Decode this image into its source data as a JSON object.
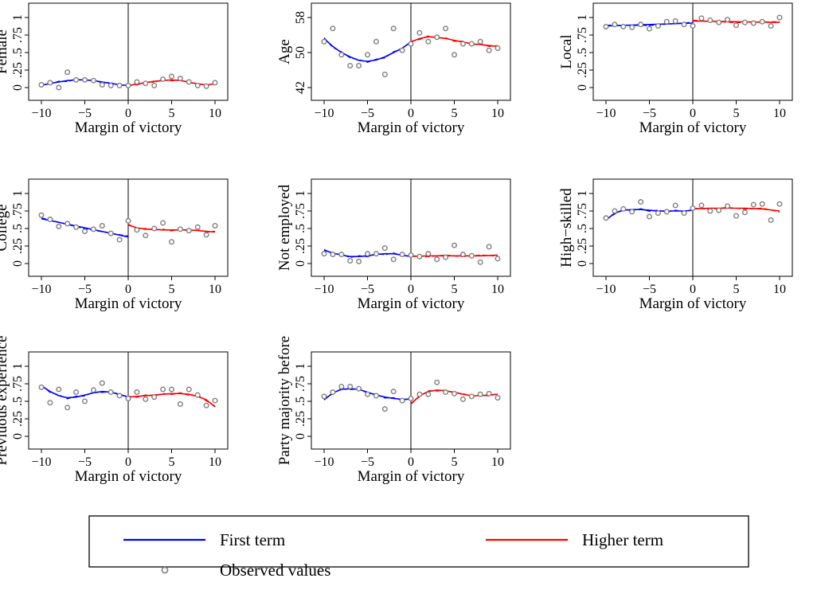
{
  "colors": {
    "first_term": "#0000ff",
    "higher_term": "#ff0000",
    "observed": "#808080",
    "axis": "#000000"
  },
  "legend": {
    "first_term": "First term",
    "higher_term": "Higher term",
    "observed": "Observed values"
  },
  "chart_data": [
    {
      "type": "scatter",
      "ylabel": "Female",
      "xlabel": "Margin of victory",
      "xlim": [
        -10,
        10
      ],
      "ylim": [
        0,
        1
      ],
      "xticks": [
        "−10",
        "−5",
        "0",
        "5",
        "10"
      ],
      "yticks": [
        "0",
        ".25",
        ".5",
        ".75",
        "1"
      ],
      "observed": {
        "x": [
          -10,
          -9,
          -8,
          -7,
          -6,
          -5,
          -4,
          -3,
          -2,
          -1,
          0,
          1,
          2,
          3,
          4,
          5,
          6,
          7,
          8,
          9,
          10
        ],
        "y": [
          0.04,
          0.07,
          0.0,
          0.22,
          0.11,
          0.11,
          0.1,
          0.04,
          0.03,
          0.03,
          0.03,
          0.08,
          0.06,
          0.03,
          0.12,
          0.16,
          0.13,
          0.08,
          0.03,
          0.02,
          0.07
        ]
      },
      "series": [
        {
          "name": "First term",
          "x": [
            -10,
            -9,
            -8,
            -7,
            -6,
            -5,
            -4,
            -3,
            -2,
            -1,
            0
          ],
          "y": [
            0.03,
            0.06,
            0.08,
            0.1,
            0.11,
            0.11,
            0.1,
            0.08,
            0.06,
            0.04,
            0.03
          ]
        },
        {
          "name": "Higher term",
          "x": [
            0,
            1,
            2,
            3,
            4,
            5,
            6,
            7,
            8,
            9,
            10
          ],
          "y": [
            0.03,
            0.05,
            0.07,
            0.09,
            0.1,
            0.11,
            0.1,
            0.08,
            0.05,
            0.04,
            0.05
          ]
        }
      ]
    },
    {
      "type": "scatter",
      "ylabel": "Age",
      "xlabel": "Margin of victory",
      "xlim": [
        -10,
        10
      ],
      "ylim": [
        40,
        62
      ],
      "xticks": [
        "−10",
        "−5",
        "0",
        "5",
        "10"
      ],
      "yticks": [
        "42",
        "50",
        "58"
      ],
      "observed": {
        "x": [
          -10,
          -9,
          -8,
          -7,
          -6,
          -5,
          -4,
          -3,
          -2,
          -1,
          0,
          1,
          2,
          3,
          4,
          5,
          6,
          7,
          8,
          9,
          10
        ],
        "y": [
          52.5,
          55.5,
          49.5,
          47,
          47,
          49.5,
          52.5,
          45,
          55.5,
          50.5,
          52,
          54.5,
          52.5,
          53.5,
          55.5,
          49.5,
          52,
          52,
          52.5,
          50.5,
          51
        ]
      },
      "series": [
        {
          "name": "First term",
          "x": [
            -10,
            -9,
            -8,
            -7,
            -6,
            -5,
            -4,
            -3,
            -2,
            -1,
            0
          ],
          "y": [
            53.2,
            51.4,
            50,
            49,
            48.2,
            48,
            48.3,
            49,
            50,
            51,
            52.4
          ]
        },
        {
          "name": "Higher term",
          "x": [
            0,
            1,
            2,
            3,
            4,
            5,
            6,
            7,
            8,
            9,
            10
          ],
          "y": [
            52.4,
            53.2,
            53.6,
            53.5,
            53.2,
            52.8,
            52.4,
            52,
            51.8,
            51.6,
            51.4
          ]
        }
      ]
    },
    {
      "type": "scatter",
      "ylabel": "Local",
      "xlabel": "Margin of victory",
      "xlim": [
        -10,
        10
      ],
      "ylim": [
        0,
        1
      ],
      "xticks": [
        "−10",
        "−5",
        "0",
        "5",
        "10"
      ],
      "yticks": [
        "0",
        ".25",
        ".5",
        ".75",
        "1"
      ],
      "observed": {
        "x": [
          -10,
          -9,
          -8,
          -7,
          -6,
          -5,
          -4,
          -3,
          -2,
          -1,
          0,
          1,
          2,
          3,
          4,
          5,
          6,
          7,
          8,
          9,
          10
        ],
        "y": [
          0.87,
          0.9,
          0.87,
          0.86,
          0.9,
          0.84,
          0.88,
          0.94,
          0.95,
          0.9,
          0.88,
          0.99,
          0.96,
          0.93,
          0.97,
          0.89,
          0.93,
          0.92,
          0.94,
          0.88,
          1.0
        ]
      },
      "series": [
        {
          "name": "First term",
          "x": [
            -10,
            -5,
            0
          ],
          "y": [
            0.88,
            0.9,
            0.92
          ]
        },
        {
          "name": "Higher term",
          "x": [
            0,
            5,
            10
          ],
          "y": [
            0.95,
            0.94,
            0.93
          ]
        }
      ]
    },
    {
      "type": "scatter",
      "ylabel": "College",
      "xlabel": "Margin of victory",
      "xlim": [
        -10,
        10
      ],
      "ylim": [
        0,
        1
      ],
      "xticks": [
        "−10",
        "−5",
        "0",
        "5",
        "10"
      ],
      "yticks": [
        "0",
        ".25",
        ".5",
        ".75",
        "1"
      ],
      "observed": {
        "x": [
          -10,
          -9,
          -8,
          -7,
          -6,
          -5,
          -4,
          -3,
          -2,
          -1,
          0,
          1,
          2,
          3,
          4,
          5,
          6,
          7,
          8,
          9,
          10
        ],
        "y": [
          0.69,
          0.63,
          0.53,
          0.57,
          0.52,
          0.46,
          0.49,
          0.54,
          0.43,
          0.34,
          0.61,
          0.48,
          0.4,
          0.5,
          0.58,
          0.31,
          0.49,
          0.47,
          0.52,
          0.41,
          0.54
        ]
      },
      "series": [
        {
          "name": "First term",
          "x": [
            -10,
            -5,
            0
          ],
          "y": [
            0.64,
            0.51,
            0.38
          ]
        },
        {
          "name": "Higher term",
          "x": [
            0,
            1,
            2,
            3,
            4,
            5,
            6,
            7,
            8,
            9,
            10
          ],
          "y": [
            0.55,
            0.51,
            0.49,
            0.49,
            0.48,
            0.48,
            0.48,
            0.48,
            0.47,
            0.46,
            0.45
          ]
        }
      ]
    },
    {
      "type": "scatter",
      "ylabel": "Not employed",
      "xlabel": "Margin of victory",
      "xlim": [
        -10,
        10
      ],
      "ylim": [
        0,
        1
      ],
      "xticks": [
        "−10",
        "−5",
        "0",
        "5",
        "10"
      ],
      "yticks": [
        "0",
        ".25",
        ".5",
        ".75",
        "1"
      ],
      "observed": {
        "x": [
          -10,
          -9,
          -8,
          -7,
          -6,
          -5,
          -4,
          -3,
          -2,
          -1,
          0,
          1,
          2,
          3,
          4,
          5,
          6,
          7,
          8,
          9,
          10
        ],
        "y": [
          0.14,
          0.13,
          0.13,
          0.04,
          0.03,
          0.14,
          0.14,
          0.22,
          0.06,
          0.13,
          0.12,
          0.1,
          0.14,
          0.06,
          0.09,
          0.26,
          0.13,
          0.11,
          0.02,
          0.24,
          0.07
        ]
      },
      "series": [
        {
          "name": "First term",
          "x": [
            -10,
            -9,
            -8,
            -7,
            -6,
            -5,
            -4,
            -3,
            -2,
            -1,
            0
          ],
          "y": [
            0.19,
            0.15,
            0.12,
            0.1,
            0.1,
            0.11,
            0.13,
            0.14,
            0.14,
            0.12,
            0.1
          ]
        },
        {
          "name": "Higher term",
          "x": [
            0,
            2,
            4,
            6,
            8,
            10
          ],
          "y": [
            0.1,
            0.11,
            0.11,
            0.11,
            0.11,
            0.12
          ]
        }
      ]
    },
    {
      "type": "scatter",
      "ylabel": "High−skilled",
      "xlabel": "Margin of victory",
      "xlim": [
        -10,
        10
      ],
      "ylim": [
        0,
        1
      ],
      "xticks": [
        "−10",
        "−5",
        "0",
        "5",
        "10"
      ],
      "yticks": [
        "0",
        ".25",
        ".5",
        ".75",
        "1"
      ],
      "observed": {
        "x": [
          -10,
          -9,
          -8,
          -7,
          -6,
          -5,
          -4,
          -3,
          -2,
          -1,
          0,
          1,
          2,
          3,
          4,
          5,
          6,
          7,
          8,
          9,
          10
        ],
        "y": [
          0.65,
          0.75,
          0.78,
          0.74,
          0.88,
          0.67,
          0.72,
          0.74,
          0.83,
          0.72,
          0.79,
          0.83,
          0.75,
          0.76,
          0.82,
          0.68,
          0.73,
          0.84,
          0.85,
          0.62,
          0.85
        ]
      },
      "series": [
        {
          "name": "First term",
          "x": [
            -10,
            -9,
            -8,
            -7,
            -6,
            -5,
            -4,
            -3,
            -2,
            -1,
            0
          ],
          "y": [
            0.62,
            0.72,
            0.76,
            0.77,
            0.77,
            0.76,
            0.75,
            0.75,
            0.75,
            0.75,
            0.76
          ]
        },
        {
          "name": "Higher term",
          "x": [
            0,
            2,
            4,
            6,
            8,
            10
          ],
          "y": [
            0.78,
            0.79,
            0.79,
            0.79,
            0.78,
            0.75
          ]
        }
      ]
    },
    {
      "type": "scatter",
      "ylabel": "Previuous experience",
      "xlabel": "Margin of victory",
      "xlim": [
        -10,
        10
      ],
      "ylim": [
        0,
        1
      ],
      "xticks": [
        "−10",
        "−5",
        "0",
        "5",
        "10"
      ],
      "yticks": [
        "0",
        ".25",
        ".5",
        ".75",
        "1"
      ],
      "observed": {
        "x": [
          -10,
          -9,
          -8,
          -7,
          -6,
          -5,
          -4,
          -3,
          -2,
          -1,
          0,
          1,
          2,
          3,
          4,
          5,
          6,
          7,
          8,
          9,
          10
        ],
        "y": [
          0.7,
          0.48,
          0.67,
          0.41,
          0.63,
          0.5,
          0.66,
          0.76,
          0.63,
          0.58,
          0.54,
          0.63,
          0.53,
          0.56,
          0.67,
          0.67,
          0.46,
          0.67,
          0.59,
          0.44,
          0.51
        ]
      },
      "series": [
        {
          "name": "First term",
          "x": [
            -10,
            -9,
            -8,
            -7,
            -6,
            -5,
            -4,
            -3,
            -2,
            -1,
            0
          ],
          "y": [
            0.72,
            0.64,
            0.58,
            0.55,
            0.56,
            0.59,
            0.62,
            0.64,
            0.63,
            0.6,
            0.56
          ]
        },
        {
          "name": "Higher term",
          "x": [
            0,
            1,
            2,
            3,
            4,
            5,
            6,
            7,
            8,
            9,
            10
          ],
          "y": [
            0.56,
            0.57,
            0.58,
            0.59,
            0.6,
            0.61,
            0.61,
            0.6,
            0.57,
            0.52,
            0.42
          ]
        }
      ]
    },
    {
      "type": "scatter",
      "ylabel": "Party majority before",
      "xlabel": "Margin of victory",
      "xlim": [
        -10,
        10
      ],
      "ylim": [
        0,
        1
      ],
      "xticks": [
        "−10",
        "−5",
        "0",
        "5",
        "10"
      ],
      "yticks": [
        "0",
        ".25",
        ".5",
        ".75",
        "1"
      ],
      "observed": {
        "x": [
          -10,
          -9,
          -8,
          -7,
          -6,
          -5,
          -4,
          -3,
          -2,
          -1,
          0,
          1,
          2,
          3,
          4,
          5,
          6,
          7,
          8,
          9,
          10
        ],
        "y": [
          0.57,
          0.63,
          0.71,
          0.71,
          0.68,
          0.6,
          0.58,
          0.39,
          0.64,
          0.51,
          0.54,
          0.6,
          0.6,
          0.77,
          0.63,
          0.61,
          0.53,
          0.57,
          0.6,
          0.61,
          0.55
        ]
      },
      "series": [
        {
          "name": "First term",
          "x": [
            -10,
            -9,
            -8,
            -7,
            -6,
            -5,
            -4,
            -3,
            -2,
            -1,
            0
          ],
          "y": [
            0.52,
            0.62,
            0.67,
            0.68,
            0.67,
            0.63,
            0.59,
            0.56,
            0.54,
            0.53,
            0.53
          ]
        },
        {
          "name": "Higher term",
          "x": [
            0,
            1,
            2,
            3,
            4,
            5,
            6,
            7,
            8,
            9,
            10
          ],
          "y": [
            0.46,
            0.58,
            0.64,
            0.66,
            0.65,
            0.63,
            0.6,
            0.58,
            0.58,
            0.59,
            0.6
          ]
        }
      ]
    }
  ]
}
